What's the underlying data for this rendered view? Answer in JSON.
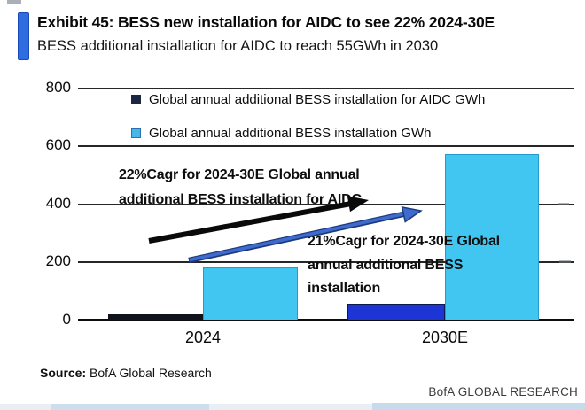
{
  "header": {
    "title": "Exhibit 45: BESS new installation for AIDC to see 22% 2024-30E",
    "subtitle": "BESS additional installation for AIDC to reach 55GWh in 2030"
  },
  "chart_data": {
    "type": "bar",
    "categories": [
      "2024",
      "2030E"
    ],
    "series": [
      {
        "name": "Global annual additional BESS installation for AIDC GWh",
        "values": [
          17,
          55
        ],
        "swatch": "#1b2740",
        "bar_colors": [
          "#0f131c",
          "#1e35d6"
        ]
      },
      {
        "name": "Global annual additional BESS installation GWh",
        "values": [
          180,
          570
        ],
        "swatch": "#47b6e9",
        "bar_colors": [
          "#41c6f1",
          "#41c6f1"
        ]
      }
    ],
    "ylim": [
      0,
      800
    ],
    "y_ticks": [
      "800",
      "600",
      "400",
      "200",
      "0"
    ],
    "gridlines": true,
    "legend_position": "top-center",
    "annotations": [
      {
        "lines": [
          "22%Cagr for 2024-30E Global annual",
          "additional BESS installation for AIDC"
        ],
        "arrow_color": "#0a0a0a"
      },
      {
        "lines": [
          "21%Cagr for 2024-30E Global",
          "annual additional BESS",
          "installation"
        ],
        "arrow_color": "#3f6bcc"
      }
    ]
  },
  "footer": {
    "source_label": "Source:",
    "source_text": "BofA Global Research",
    "brand": "BofA GLOBAL RESEARCH"
  }
}
